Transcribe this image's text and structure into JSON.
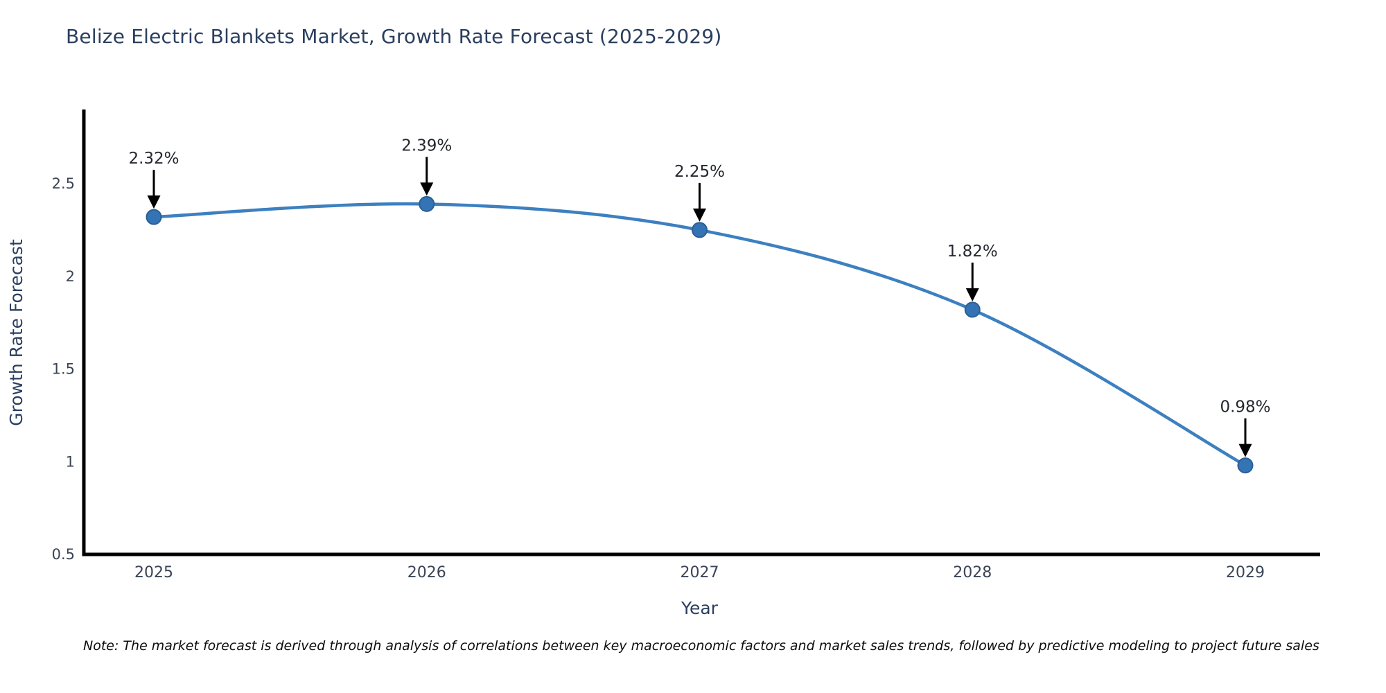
{
  "title": "Belize Electric Blankets Market, Growth Rate Forecast (2025-2029)",
  "footnote": "Note: The market forecast is derived through analysis of correlations between key macroeconomic factors and market sales trends, followed by predictive modeling to project future sales",
  "chart_data": {
    "type": "line",
    "title": "Belize Electric Blankets Market, Growth Rate Forecast (2025-2029)",
    "x": [
      "2025",
      "2026",
      "2027",
      "2028",
      "2029"
    ],
    "series": [
      {
        "name": "Growth Rate Forecast",
        "values": [
          2.32,
          2.39,
          2.25,
          1.82,
          0.98
        ]
      }
    ],
    "point_labels": [
      "2.32%",
      "2.39%",
      "2.25%",
      "1.82%",
      "0.98%"
    ],
    "xlabel": "Year",
    "ylabel": "Growth Rate Forecast",
    "ylim": [
      0.5,
      2.9
    ],
    "yticks": [
      2.5,
      2,
      1.5,
      1,
      0.5
    ],
    "grid": false,
    "legend": "none",
    "line_shape": "spline",
    "colors": {
      "line": "#3d80c0",
      "marker_fill": "#3474b4",
      "marker_edge": "#2a5f94",
      "annotation_text": "#24272e",
      "annotation_arrow": "#000000",
      "axis_line": "#000000",
      "axis_title_text": "#2a3f5f",
      "tick_text": "#3a4456",
      "background": "#ffffff"
    }
  }
}
